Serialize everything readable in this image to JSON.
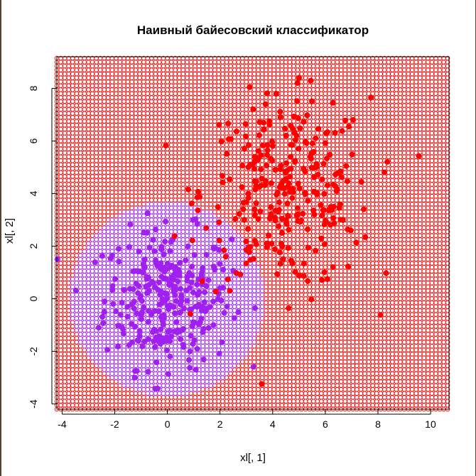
{
  "chart_data": {
    "type": "scatter",
    "title": "Наивный байесовский классификатор",
    "xlabel": "xl[, 1]",
    "ylabel": "xl[, 2]",
    "xlim": [
      -4.2,
      10.7
    ],
    "ylim": [
      -4.2,
      9.2
    ],
    "x_ticks": [
      "-4",
      "-2",
      "0",
      "2",
      "4",
      "6",
      "8",
      "10"
    ],
    "y_ticks": [
      "-4",
      "-2",
      "0",
      "2",
      "4",
      "6",
      "8"
    ],
    "x_tick_values": [
      -4,
      -2,
      0,
      2,
      4,
      6,
      8,
      10
    ],
    "y_tick_values": [
      -4,
      -2,
      0,
      2,
      4,
      6,
      8
    ],
    "grid": false,
    "legend": "none",
    "colors": {
      "class1": "#a020f0",
      "class2": "#ff0000",
      "frame": "#000000"
    },
    "classification_map": {
      "marker": "open-circle",
      "grid_step": 0.15,
      "x_range": [
        -4.2,
        10.7
      ],
      "y_range": [
        -4.2,
        9.2
      ],
      "class1_region": {
        "shape": "disk",
        "center": [
          0,
          0
        ],
        "radius": 3.7
      },
      "class1_color": "#a020f0",
      "class2_color": "#ff0000"
    },
    "series": [
      {
        "class": "class1",
        "color": "#a020f0",
        "marker": "filled-circle",
        "distribution": "normal",
        "center": [
          0,
          0
        ],
        "sd": [
          1.2,
          1.3
        ],
        "n": 300
      },
      {
        "class": "class2",
        "color": "#ff0000",
        "marker": "filled-circle",
        "distribution": "normal",
        "center": [
          4.5,
          4
        ],
        "sd": [
          1.6,
          1.8
        ],
        "n": 300
      }
    ]
  }
}
